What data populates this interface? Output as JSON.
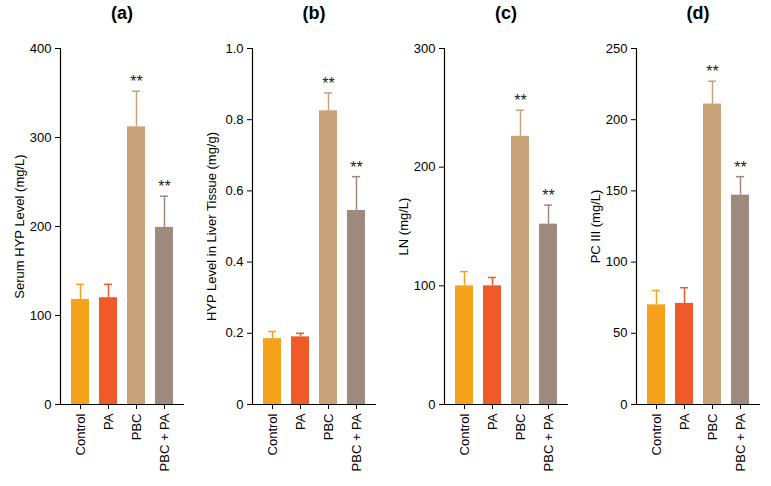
{
  "chart_data": [
    {
      "type": "bar",
      "title": "(a)",
      "y_label": "Serum HYP Level (mg/L)",
      "categories": [
        "Control",
        "PA",
        "PBC",
        "PBC + PA"
      ],
      "values": [
        118,
        120,
        312,
        199
      ],
      "errors": [
        17,
        15,
        40,
        35
      ],
      "annotations": [
        null,
        null,
        "**",
        "**"
      ],
      "colors": [
        "#f7a21b",
        "#f05a28",
        "#c9a27a",
        "#9e8a7e"
      ],
      "ylim": [
        0,
        400
      ],
      "yticks": [
        0,
        100,
        200,
        300,
        400
      ]
    },
    {
      "type": "bar",
      "title": "(b)",
      "y_label": "HYP Level in Liver Tissue (mg/g)",
      "categories": [
        "Control",
        "PA",
        "PBC",
        "PBC + PA"
      ],
      "values": [
        0.185,
        0.19,
        0.825,
        0.545
      ],
      "errors": [
        0.02,
        0.01,
        0.05,
        0.095
      ],
      "annotations": [
        null,
        null,
        "**",
        "**"
      ],
      "colors": [
        "#f7a21b",
        "#f05a28",
        "#c9a27a",
        "#9e8a7e"
      ],
      "ylim": [
        0,
        1
      ],
      "yticks": [
        0,
        0.2,
        0.4,
        0.6,
        0.8,
        {
          "value": 1,
          "label": "1.0"
        }
      ]
    },
    {
      "type": "bar",
      "title": "(c)",
      "y_label": "LN (mg/L)",
      "categories": [
        "Control",
        "PA",
        "PBC",
        "PBC + PA"
      ],
      "values": [
        100,
        100,
        226,
        152
      ],
      "errors": [
        12,
        7,
        22,
        16
      ],
      "annotations": [
        null,
        null,
        "**",
        "**"
      ],
      "colors": [
        "#f7a21b",
        "#f05a28",
        "#c9a27a",
        "#9e8a7e"
      ],
      "ylim": [
        0,
        300
      ],
      "yticks": [
        0,
        100,
        200,
        300
      ]
    },
    {
      "type": "bar",
      "title": "(d)",
      "y_label": "PC III (mg/L)",
      "categories": [
        "Control",
        "PA",
        "PBC",
        "PBC + PA"
      ],
      "values": [
        70,
        71,
        211,
        147
      ],
      "errors": [
        10,
        11,
        16,
        13
      ],
      "annotations": [
        null,
        null,
        "**",
        "**"
      ],
      "colors": [
        "#f7a21b",
        "#f05a28",
        "#c9a27a",
        "#9e8a7e"
      ],
      "ylim": [
        0,
        250
      ],
      "yticks": [
        0,
        50,
        100,
        150,
        200,
        250
      ]
    }
  ]
}
